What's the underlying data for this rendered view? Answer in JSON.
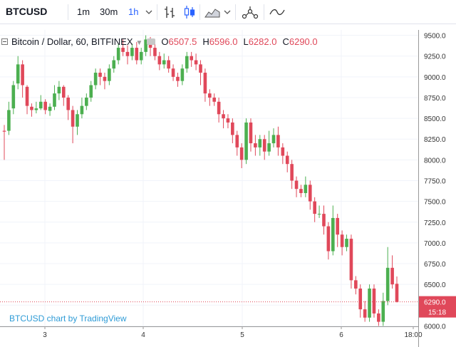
{
  "header": {
    "symbol": "BTCUSD",
    "intervals": [
      "1m",
      "30m",
      "1h"
    ],
    "active_interval": "1h",
    "icons": [
      "chevron-down-icon",
      "bar-chart-icon",
      "candles-icon",
      "area-chart-icon",
      "indicators-icon",
      "compare-icon"
    ]
  },
  "legend": {
    "title": "Bitcoin / Dollar, 60, BITFINEX",
    "open_label": "O",
    "open": "6507.5",
    "high_label": "H",
    "high": "6596.0",
    "low_label": "L",
    "low": "6282.0",
    "close_label": "C",
    "close": "6290.0"
  },
  "watermark": "BTCUSD chart by TradingView",
  "price_badge": {
    "price": "6290.0",
    "countdown": "15:18"
  },
  "colors": {
    "up": "#4caf50",
    "down": "#e0485a",
    "badge": "#e0485a",
    "watermark": "#2e9bd6"
  },
  "chart_data": {
    "type": "candlestick",
    "y_axis_ticks": [
      "9500.0",
      "9250.0",
      "9000.0",
      "8750.0",
      "8500.0",
      "8250.0",
      "8000.0",
      "7750.0",
      "7500.0",
      "7250.0",
      "7000.0",
      "6750.0",
      "6500.0",
      "6250.0",
      "6000.0"
    ],
    "x_axis_ticks": [
      "3",
      "4",
      "5",
      "6",
      "18:00"
    ],
    "ylim": [
      5995,
      9565
    ],
    "last_price": 6290.0,
    "grid": true,
    "candles": [
      [
        8350,
        8340,
        8420,
        8000
      ],
      [
        8350,
        8600,
        8700,
        8300
      ],
      [
        8620,
        8900,
        8950,
        8550
      ],
      [
        8920,
        9150,
        9250,
        8850
      ],
      [
        9150,
        8900,
        9200,
        8750
      ],
      [
        8880,
        8650,
        8900,
        8550
      ],
      [
        8640,
        8600,
        8680,
        8520
      ],
      [
        8600,
        8620,
        8700,
        8560
      ],
      [
        8620,
        8700,
        8780,
        8600
      ],
      [
        8700,
        8600,
        8730,
        8550
      ],
      [
        8590,
        8640,
        8680,
        8530
      ],
      [
        8640,
        8800,
        8900,
        8600
      ],
      [
        8800,
        8880,
        8950,
        8720
      ],
      [
        8880,
        8750,
        8900,
        8650
      ],
      [
        8750,
        8600,
        8780,
        8480
      ],
      [
        8600,
        8400,
        8650,
        8200
      ],
      [
        8400,
        8550,
        8600,
        8300
      ],
      [
        8550,
        8650,
        8750,
        8500
      ],
      [
        8650,
        8750,
        8800,
        8600
      ],
      [
        8750,
        8900,
        8950,
        8700
      ],
      [
        8900,
        9050,
        9100,
        8850
      ],
      [
        9050,
        9000,
        9100,
        8900
      ],
      [
        9000,
        8950,
        9050,
        8850
      ],
      [
        8950,
        9100,
        9150,
        8900
      ],
      [
        9100,
        9200,
        9250,
        9050
      ],
      [
        9200,
        9350,
        9400,
        9150
      ],
      [
        9350,
        9300,
        9450,
        9250
      ],
      [
        9300,
        9250,
        9380,
        9150
      ],
      [
        9250,
        9350,
        9400,
        9200
      ],
      [
        9350,
        9200,
        9420,
        9150
      ],
      [
        9200,
        9300,
        9350,
        9150
      ],
      [
        9300,
        9450,
        9500,
        9250
      ],
      [
        9450,
        9350,
        9480,
        9250
      ],
      [
        9350,
        9250,
        9400,
        9200
      ],
      [
        9250,
        9150,
        9300,
        9080
      ],
      [
        9150,
        9200,
        9280,
        9100
      ],
      [
        9200,
        9100,
        9250,
        9050
      ],
      [
        9100,
        9000,
        9150,
        8950
      ],
      [
        9000,
        8950,
        9050,
        8880
      ],
      [
        8950,
        9100,
        9150,
        8900
      ],
      [
        9100,
        9250,
        9300,
        9050
      ],
      [
        9250,
        9200,
        9300,
        9120
      ],
      [
        9200,
        9150,
        9280,
        9080
      ],
      [
        9150,
        9050,
        9200,
        8900
      ],
      [
        9050,
        8800,
        9100,
        8700
      ],
      [
        8800,
        8750,
        8850,
        8650
      ],
      [
        8750,
        8700,
        8800,
        8650
      ],
      [
        8700,
        8550,
        8750,
        8450
      ],
      [
        8550,
        8500,
        8600,
        8380
      ],
      [
        8500,
        8450,
        8550,
        8380
      ],
      [
        8450,
        8300,
        8500,
        8200
      ],
      [
        8300,
        8150,
        8350,
        8050
      ],
      [
        8150,
        8000,
        8200,
        7900
      ],
      [
        8000,
        8450,
        8500,
        7950
      ],
      [
        8450,
        8200,
        8500,
        8100
      ],
      [
        8200,
        8150,
        8300,
        8050
      ],
      [
        8150,
        8250,
        8300,
        8050
      ],
      [
        8250,
        8100,
        8300,
        8000
      ],
      [
        8100,
        8200,
        8350,
        8050
      ],
      [
        8200,
        8300,
        8380,
        8150
      ],
      [
        8300,
        8150,
        8400,
        8050
      ],
      [
        8150,
        8050,
        8200,
        7950
      ],
      [
        8050,
        7950,
        8100,
        7850
      ],
      [
        7950,
        7750,
        8000,
        7650
      ],
      [
        7750,
        7650,
        7800,
        7550
      ],
      [
        7650,
        7600,
        7700,
        7550
      ],
      [
        7600,
        7700,
        7800,
        7550
      ],
      [
        7700,
        7500,
        7750,
        7400
      ],
      [
        7500,
        7350,
        7550,
        7250
      ],
      [
        7350,
        7350,
        7450,
        7300
      ],
      [
        7350,
        7200,
        7450,
        7100
      ],
      [
        7200,
        6900,
        7250,
        6800
      ],
      [
        6900,
        7300,
        7450,
        6850
      ],
      [
        7300,
        7100,
        7350,
        6950
      ],
      [
        7100,
        6950,
        7150,
        6850
      ],
      [
        6950,
        7050,
        7100,
        6900
      ],
      [
        7050,
        6550,
        7100,
        6450
      ],
      [
        6550,
        6450,
        6600,
        6380
      ],
      [
        6450,
        6200,
        6500,
        6100
      ],
      [
        6200,
        6100,
        6300,
        6050
      ],
      [
        6100,
        6450,
        6500,
        6050
      ],
      [
        6450,
        6150,
        6500,
        6100
      ],
      [
        6150,
        6050,
        6200,
        6000
      ],
      [
        6050,
        6300,
        6400,
        6000
      ],
      [
        6300,
        6700,
        6950,
        6250
      ],
      [
        6700,
        6500,
        6850,
        6450
      ],
      [
        6507.5,
        6290,
        6596,
        6282
      ]
    ]
  }
}
